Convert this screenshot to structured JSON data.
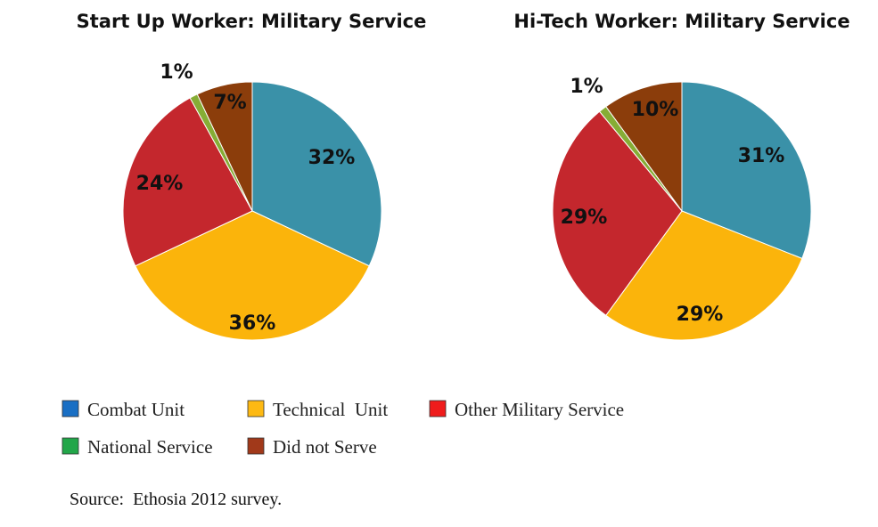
{
  "chart_data": [
    {
      "type": "pie",
      "title": "Start Up Worker: Military Service",
      "categories": [
        "Combat Unit",
        "Technical  Unit",
        "Other Military Service",
        "National Service",
        "Did not Serve"
      ],
      "values": [
        32,
        36,
        24,
        1,
        7
      ],
      "labels": [
        "32%",
        "36%",
        "24%",
        "1%",
        "7%"
      ]
    },
    {
      "type": "pie",
      "title": "Hi-Tech Worker: Military Service",
      "categories": [
        "Combat Unit",
        "Technical  Unit",
        "Other Military Service",
        "National Service",
        "Did not Serve"
      ],
      "values": [
        31,
        29,
        29,
        1,
        10
      ],
      "labels": [
        "31%",
        "29%",
        "29%",
        "1%",
        "10%"
      ]
    }
  ],
  "slice_colors": [
    "#3a91a8",
    "#fbb40b",
    "#c4272d",
    "#86ad35",
    "#8b3d0b"
  ],
  "legend": {
    "items": [
      {
        "label": "Combat Unit",
        "swatch": "#1a6fc4"
      },
      {
        "label": "Technical  Unit",
        "swatch": "#fdb913"
      },
      {
        "label": "Other Military Service",
        "swatch": "#ef1c1c"
      },
      {
        "label": "National Service",
        "swatch": "#22a649"
      },
      {
        "label": "Did not Serve",
        "swatch": "#a1391a"
      }
    ]
  },
  "source": "Source:  Ethosia 2012 survey."
}
